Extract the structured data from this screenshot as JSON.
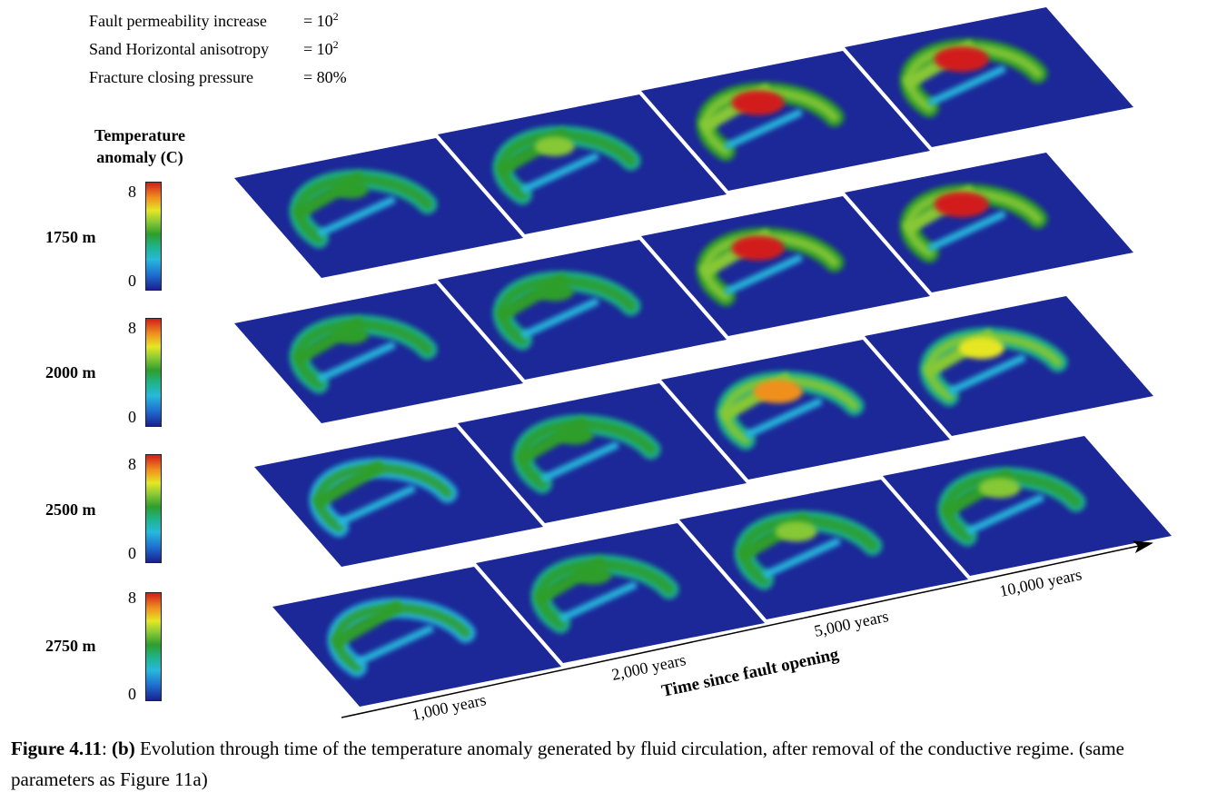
{
  "parameters": [
    {
      "label": "Fault permeability increase",
      "eq": "= 10",
      "sup": "2"
    },
    {
      "label": "Sand Horizontal anisotropy",
      "eq": "= 10",
      "sup": "2"
    },
    {
      "label": "Fracture closing pressure",
      "eq": "= 80%",
      "sup": ""
    }
  ],
  "legend": {
    "title_line1": "Temperature",
    "title_line2": "anomaly (C)",
    "max_label": "8",
    "min_label": "0",
    "colors": [
      "#1a2190",
      "#1e6fd0",
      "#27b8dc",
      "#1fb38b",
      "#2f9e2c",
      "#86c836",
      "#e6e624",
      "#f0901e",
      "#d21d1c"
    ]
  },
  "depths": [
    "1750 m",
    "2000 m",
    "2500 m",
    "2750 m"
  ],
  "time_axis": {
    "title": "Time since fault opening",
    "labels": [
      "1,000 years",
      "2,000 years",
      "5,000 years",
      "10,000 years"
    ]
  },
  "caption": {
    "number": "Figure 4.11",
    "sep": ": ",
    "part": "(b)",
    "text": " Evolution through time of the temperature anomaly generated by fluid circulation, after removal of the conductive regime. (same parameters as Figure 11a)"
  },
  "panels": {
    "background_color": "#1c2898",
    "peak_intensity_by_depth": [
      [
        0.45,
        0.6,
        0.95,
        1.0
      ],
      [
        0.45,
        0.55,
        0.95,
        1.0
      ],
      [
        0.3,
        0.55,
        0.85,
        0.75
      ],
      [
        0.3,
        0.55,
        0.65,
        0.65
      ]
    ]
  }
}
